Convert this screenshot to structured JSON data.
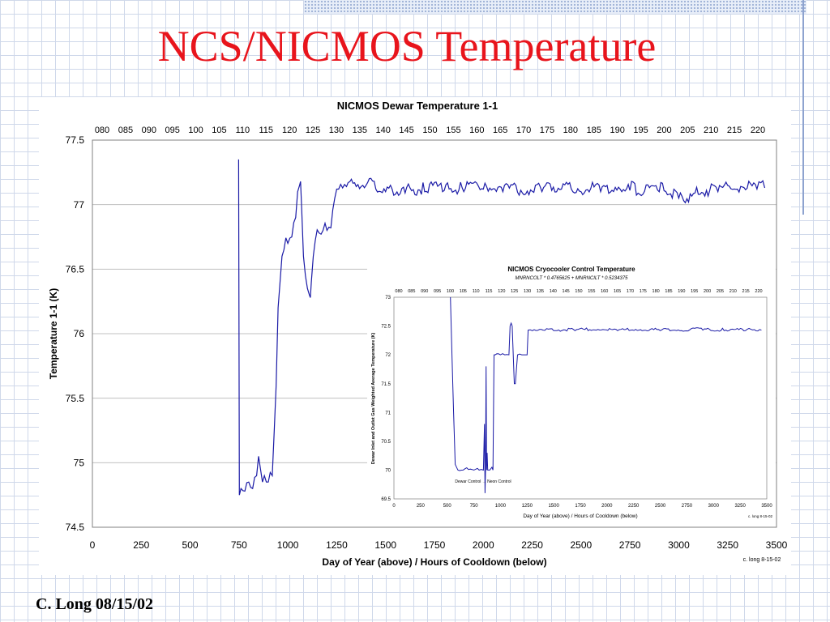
{
  "slide": {
    "title": "NCS/NICMOS Temperature",
    "footer": "C. Long 08/15/02"
  },
  "colors": {
    "title": "#e8141c",
    "series": "#1a1aa6",
    "grid": "#c0c0c0",
    "text": "#000000"
  },
  "chart_data": [
    {
      "type": "line",
      "title": "NICMOS Dewar Temperature 1-1",
      "xlabel": "Day of Year (above) / Hours of Cooldown (below)",
      "ylabel": "Temperature 1-1 (K)",
      "xlim": [
        0,
        3500
      ],
      "ylim": [
        74.5,
        77.5
      ],
      "x_ticks": [
        0,
        250,
        500,
        750,
        1000,
        1250,
        1500,
        1750,
        2000,
        2250,
        2500,
        2750,
        3000,
        3250,
        3500
      ],
      "y_ticks": [
        74.5,
        75,
        75.5,
        76,
        76.5,
        77,
        77.5
      ],
      "top_axis_labels": [
        "080",
        "085",
        "090",
        "095",
        "100",
        "105",
        "110",
        "115",
        "120",
        "125",
        "130",
        "135",
        "140",
        "145",
        "150",
        "155",
        "160",
        "165",
        "170",
        "175",
        "180",
        "185",
        "190",
        "195",
        "200",
        "205",
        "210",
        "215",
        "220"
      ],
      "annotation": "c. long 8-15-02",
      "grid": "horizontal",
      "series": [
        {
          "x": [
            748,
            752,
            760,
            780,
            800,
            820,
            840,
            850,
            860,
            870,
            880,
            890,
            900,
            920,
            940,
            950,
            960,
            970,
            980,
            1000,
            1020,
            1040,
            1050,
            1060,
            1065,
            1070,
            1080,
            1090,
            1100,
            1110,
            1115,
            1120,
            1130,
            1140,
            1160,
            1180,
            1200,
            1220,
            1240,
            1250,
            1260,
            1280,
            1300,
            1350,
            1400,
            1450,
            1500,
            1550,
            1600,
            1700,
            1800,
            1900,
            2000,
            2100,
            2200,
            2300,
            2350,
            2400,
            2500,
            2600,
            2700,
            2750,
            2800,
            2900,
            2950,
            3000,
            3050,
            3100,
            3200,
            3300,
            3400,
            3440
          ],
          "y": [
            77.35,
            74.75,
            74.8,
            74.78,
            74.85,
            74.8,
            74.9,
            75.05,
            74.95,
            74.85,
            74.9,
            74.85,
            74.85,
            74.9,
            75.6,
            76.2,
            76.4,
            76.6,
            76.65,
            76.7,
            76.75,
            76.9,
            77.1,
            77.15,
            77.18,
            77.0,
            76.6,
            76.45,
            76.35,
            76.3,
            76.28,
            76.4,
            76.6,
            76.72,
            76.78,
            76.8,
            76.8,
            76.82,
            77.05,
            77.12,
            77.12,
            77.13,
            77.14,
            77.14,
            77.15,
            77.12,
            77.1,
            77.08,
            77.09,
            77.1,
            77.11,
            77.1,
            77.12,
            77.1,
            77.09,
            77.1,
            77.11,
            77.12,
            77.1,
            77.1,
            77.12,
            77.11,
            77.08,
            77.1,
            77.08,
            77.05,
            77.02,
            77.08,
            77.1,
            77.12,
            77.12,
            77.13
          ]
        }
      ]
    },
    {
      "type": "line",
      "title": "NICMOS Cryocooler Control Temperature",
      "subtitle": "MNRNCOLT * 0.4765625  +  MNRNCILT * 0.5234375",
      "xlabel": "Day of Year (above) / Hours of Cooldown (below)",
      "ylabel": "Dewar Inlet and Outlet Gas Weighted Average Temperature (K)",
      "xlim": [
        0,
        3500
      ],
      "ylim": [
        69.5,
        73
      ],
      "x_ticks": [
        0,
        250,
        500,
        750,
        1000,
        1250,
        1500,
        1750,
        2000,
        2250,
        2500,
        2750,
        3000,
        3250,
        3500
      ],
      "y_ticks": [
        69.5,
        70,
        70.5,
        71,
        71.5,
        72,
        72.5,
        73
      ],
      "top_axis_labels": [
        "080",
        "085",
        "090",
        "095",
        "100",
        "105",
        "110",
        "115",
        "120",
        "125",
        "130",
        "135",
        "140",
        "145",
        "150",
        "155",
        "160",
        "165",
        "170",
        "175",
        "180",
        "185",
        "190",
        "195",
        "200",
        "205",
        "210",
        "215",
        "220"
      ],
      "annotation": "c. long 8-15-02",
      "label_text": "Dewar Control  →  Neon Control",
      "grid": "none",
      "series": [
        {
          "x": [
            530,
            545,
            560,
            575,
            600,
            650,
            700,
            750,
            800,
            840,
            850,
            855,
            860,
            865,
            870,
            875,
            880,
            890,
            900,
            920,
            930,
            940,
            950,
            1000,
            1020,
            1040,
            1080,
            1090,
            1100,
            1110,
            1130,
            1140,
            1160,
            1200,
            1230,
            1250,
            1260,
            1300,
            1400,
            1500,
            1700,
            1900,
            2100,
            2300,
            2500,
            2700,
            2900,
            3100,
            3300,
            3450
          ],
          "y": [
            73.0,
            72.0,
            71.0,
            70.1,
            70.0,
            70.0,
            70.01,
            70.0,
            70.0,
            70.0,
            70.8,
            69.6,
            70.0,
            71.8,
            70.0,
            70.3,
            70.0,
            70.0,
            70.0,
            70.05,
            70.0,
            72.0,
            72.0,
            72.0,
            72.02,
            72.0,
            72.0,
            72.5,
            72.55,
            72.5,
            71.5,
            71.5,
            72.0,
            72.0,
            72.0,
            72.0,
            72.43,
            72.42,
            72.43,
            72.42,
            72.42,
            72.43,
            72.42,
            72.43,
            72.42,
            72.42,
            72.43,
            72.42,
            72.42,
            72.43
          ]
        }
      ]
    }
  ]
}
